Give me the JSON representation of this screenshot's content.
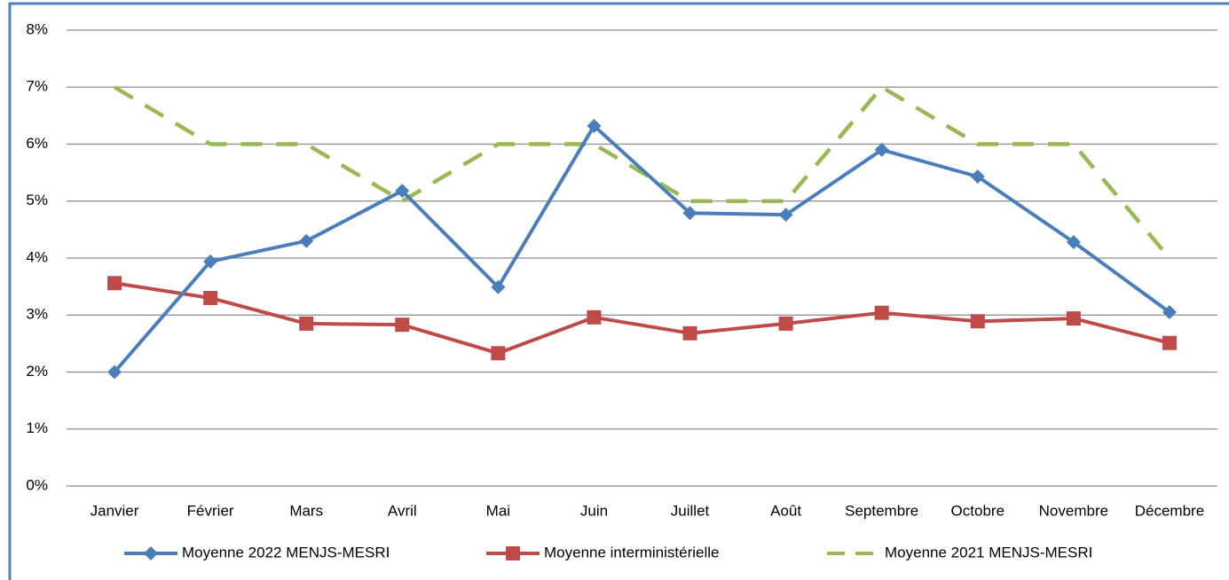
{
  "chart_data": {
    "type": "line",
    "categories": [
      "Janvier",
      "Février",
      "Mars",
      "Avril",
      "Mai",
      "Juin",
      "Juillet",
      "Août",
      "Septembre",
      "Octobre",
      "Novembre",
      "Décembre"
    ],
    "series": [
      {
        "name": "Moyenne 2022 MENJS-MESRI",
        "color": "#4a7ebb",
        "marker": "diamond",
        "values": [
          2.0,
          3.94,
          4.3,
          5.18,
          3.49,
          6.32,
          4.79,
          4.76,
          5.9,
          5.43,
          4.28,
          3.05
        ]
      },
      {
        "name": "Moyenne interministérielle",
        "color": "#be4b48",
        "marker": "square",
        "values": [
          3.56,
          3.3,
          2.85,
          2.83,
          2.33,
          2.96,
          2.68,
          2.85,
          3.04,
          2.89,
          2.94,
          2.51
        ]
      },
      {
        "name": "Moyenne 2021 MENJS-MESRI",
        "color": "#98b954",
        "dashed": true,
        "values": [
          7,
          6,
          6,
          5,
          6,
          6,
          5,
          5,
          7,
          6,
          6,
          4
        ]
      }
    ],
    "ylim": [
      0,
      8
    ],
    "yticks": [
      {
        "value": 0,
        "label": "0%"
      },
      {
        "value": 1,
        "label": "1%"
      },
      {
        "value": 2,
        "label": "2%"
      },
      {
        "value": 3,
        "label": "3%"
      },
      {
        "value": 4,
        "label": "4%"
      },
      {
        "value": 5,
        "label": "5%"
      },
      {
        "value": 6,
        "label": "6%"
      },
      {
        "value": 7,
        "label": "7%"
      },
      {
        "value": 8,
        "label": "8%"
      }
    ],
    "grid": true,
    "legend": "bottom"
  }
}
